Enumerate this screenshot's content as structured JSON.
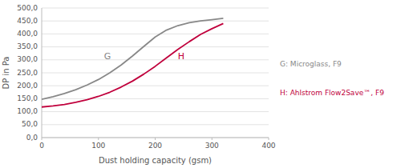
{
  "chart_data": {
    "type": "line",
    "xlabel": "Dust holding capacity (gsm)",
    "ylabel": "DP in Pa",
    "x": [
      0,
      20,
      40,
      60,
      80,
      100,
      120,
      140,
      160,
      180,
      200,
      220,
      240,
      260,
      280,
      300,
      320
    ],
    "series": [
      {
        "name": "G: Microglass, F9",
        "color": "#888888",
        "values": [
          148,
          158,
          170,
          185,
          203,
          224,
          250,
          280,
          315,
          352,
          388,
          415,
          432,
          443,
          450,
          455,
          460
        ]
      },
      {
        "name": "H: Ahlstrom Flow2Save™, F9",
        "color": "#c0003c",
        "values": [
          118,
          122,
          128,
          136,
          146,
          159,
          175,
          195,
          218,
          245,
          275,
          308,
          340,
          370,
          398,
          420,
          440
        ]
      }
    ],
    "annotations": [
      {
        "text": "G",
        "x": 110,
        "y": 295,
        "color": "#888888"
      },
      {
        "text": "H",
        "x": 240,
        "y": 295,
        "color": "#c0003c"
      }
    ],
    "xlim": [
      0,
      400
    ],
    "ylim": [
      0,
      500
    ],
    "xticks": [
      0,
      100,
      200,
      300,
      400
    ],
    "yticks": [
      {
        "value": 0,
        "label": "0,0"
      },
      {
        "value": 50,
        "label": "50,0"
      },
      {
        "value": 100,
        "label": "100,0"
      },
      {
        "value": 150,
        "label": "150,0"
      },
      {
        "value": 200,
        "label": "200,0"
      },
      {
        "value": 250,
        "label": "250,0"
      },
      {
        "value": 300,
        "label": "300,0"
      },
      {
        "value": 350,
        "label": "350,0"
      },
      {
        "value": 400,
        "label": "400,0"
      },
      {
        "value": 450,
        "label": "450,0"
      },
      {
        "value": 500,
        "label": "500,0"
      }
    ],
    "grid": true,
    "legend": "right"
  }
}
